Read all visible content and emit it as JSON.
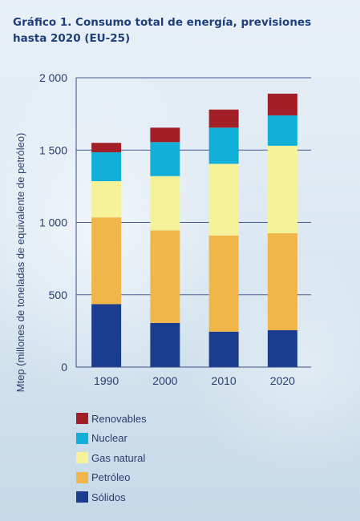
{
  "title": {
    "line1": "Gráfico 1. Consumo total de energía, previsiones",
    "line2": "hasta 2020 (EU-25)"
  },
  "colors": {
    "text": "#2a3e6e",
    "axis": "#3b4f8a",
    "grid": "#4a5c94"
  },
  "chart_data": {
    "type": "bar",
    "stacked": true,
    "title": "Gráfico 1. Consumo total de energía, previsiones hasta 2020 (EU-25)",
    "xlabel": "",
    "ylabel": "Mtep (millones de toneladas de equivalente de petróleo)",
    "ylim": [
      0,
      2000
    ],
    "yticks": [
      0,
      500,
      1000,
      1500,
      2000
    ],
    "ytick_labels": [
      "0",
      "500",
      "1 000",
      "1 500",
      "2 000"
    ],
    "grid": true,
    "legend_position": "bottom-left",
    "categories": [
      "1990",
      "2000",
      "2010",
      "2020"
    ],
    "series": [
      {
        "name": "Sólidos",
        "color": "#1a3d8f",
        "values": [
          435,
          305,
          245,
          255
        ]
      },
      {
        "name": "Petróleo",
        "color": "#f0b64a",
        "values": [
          600,
          640,
          665,
          670
        ]
      },
      {
        "name": "Gas natural",
        "color": "#f6f29a",
        "values": [
          250,
          375,
          495,
          605
        ]
      },
      {
        "name": "Nuclear",
        "color": "#12b0d8",
        "values": [
          200,
          235,
          250,
          210
        ]
      },
      {
        "name": "Renovables",
        "color": "#a31f28",
        "values": [
          65,
          100,
          125,
          150
        ]
      }
    ]
  }
}
